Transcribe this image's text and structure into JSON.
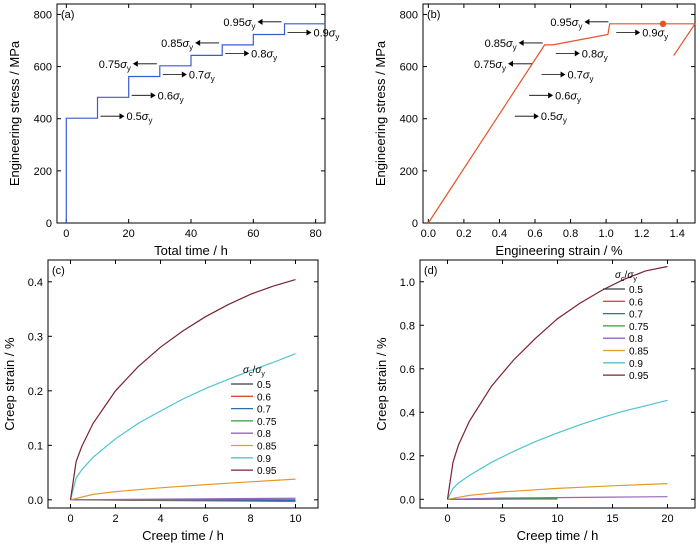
{
  "chart_data": [
    {
      "panel": "(a)",
      "type": "line",
      "xlabel": "Total time / h",
      "ylabel": "Engineering stress / MPa",
      "xlim": [
        -3,
        83
      ],
      "ylim": [
        0,
        840
      ],
      "xticks": [
        0,
        20,
        40,
        60,
        80
      ],
      "yticks": [
        0,
        200,
        400,
        600,
        800
      ],
      "line_color": "#3b5bd6",
      "series": [
        {
          "x": [
            0,
            0,
            10,
            10,
            20,
            20,
            30,
            30,
            40,
            40,
            50,
            50,
            60,
            60,
            70,
            70,
            83
          ],
          "y": [
            0,
            402,
            402,
            482,
            482,
            562,
            562,
            603,
            603,
            643,
            643,
            683,
            683,
            723,
            723,
            764,
            764
          ]
        }
      ],
      "annotations": [
        {
          "label": "0.5σy",
          "base": "0.5",
          "sub": "y",
          "x": 10,
          "y": 402,
          "dir": "right"
        },
        {
          "label": "0.6σy",
          "base": "0.6",
          "sub": "y",
          "x": 20,
          "y": 482,
          "dir": "right"
        },
        {
          "label": "0.75σy",
          "base": "0.75",
          "sub": "y",
          "x": 30,
          "y": 603,
          "dir": "left"
        },
        {
          "label": "0.7σy",
          "base": "0.7",
          "sub": "y",
          "x": 30,
          "y": 562,
          "dir": "right"
        },
        {
          "label": "0.85σy",
          "base": "0.85",
          "sub": "y",
          "x": 50,
          "y": 683,
          "dir": "left"
        },
        {
          "label": "0.8σy",
          "base": "0.8",
          "sub": "y",
          "x": 50,
          "y": 643,
          "dir": "right"
        },
        {
          "label": "0.95σy",
          "base": "0.95",
          "sub": "y",
          "x": 70,
          "y": 764,
          "dir": "left"
        },
        {
          "label": "0.9σy",
          "base": "0.9",
          "sub": "y",
          "x": 70,
          "y": 723,
          "dir": "right"
        }
      ]
    },
    {
      "panel": "(b)",
      "type": "line",
      "xlabel": "Engineering strain / %",
      "ylabel": "Engineering stress / MPa",
      "xlim": [
        -0.03,
        1.5
      ],
      "ylim": [
        0,
        840
      ],
      "xticks": [
        0.0,
        0.2,
        0.4,
        0.6,
        0.8,
        1.0,
        1.2,
        1.4
      ],
      "yticks": [
        0,
        200,
        400,
        600,
        800
      ],
      "line_color": "#e8512a",
      "series": [
        {
          "x": [
            0,
            0.654,
            0.7,
            1.01,
            1.02,
            1.5,
            1.38
          ],
          "y": [
            0,
            683,
            683,
            723,
            764,
            764,
            642
          ]
        }
      ],
      "marker": {
        "x": 1.32,
        "y": 764
      },
      "annotations": [
        {
          "label": "0.5σy",
          "base": "0.5",
          "sub": "y",
          "x": 0.47,
          "y": 402,
          "dir": "right"
        },
        {
          "label": "0.6σy",
          "base": "0.6",
          "sub": "y",
          "x": 0.55,
          "y": 482,
          "dir": "right"
        },
        {
          "label": "0.75σy",
          "base": "0.75",
          "sub": "y",
          "x": 0.6,
          "y": 603,
          "dir": "left"
        },
        {
          "label": "0.7σy",
          "base": "0.7",
          "sub": "y",
          "x": 0.62,
          "y": 562,
          "dir": "right"
        },
        {
          "label": "0.85σy",
          "base": "0.85",
          "sub": "y",
          "x": 0.66,
          "y": 683,
          "dir": "left"
        },
        {
          "label": "0.8σy",
          "base": "0.8",
          "sub": "y",
          "x": 0.7,
          "y": 643,
          "dir": "right"
        },
        {
          "label": "0.95σy",
          "base": "0.95",
          "sub": "y",
          "x": 1.03,
          "y": 764,
          "dir": "left"
        },
        {
          "label": "0.9σy",
          "base": "0.9",
          "sub": "y",
          "x": 1.04,
          "y": 723,
          "dir": "right"
        }
      ]
    },
    {
      "panel": "(c)",
      "type": "line",
      "xlabel": "Creep time / h",
      "ylabel": "Creep strain / %",
      "xlim": [
        -1,
        11
      ],
      "ylim": [
        -0.015,
        0.44
      ],
      "xticks": [
        0,
        2,
        4,
        6,
        8,
        10
      ],
      "yticks": [
        0.0,
        0.1,
        0.2,
        0.3,
        0.4
      ],
      "legend_title": "σc/σy",
      "series": [
        {
          "name": "0.5",
          "color": "#3c3c3c",
          "x": [
            0,
            10
          ],
          "y": [
            0,
            -0.002
          ]
        },
        {
          "name": "0.6",
          "color": "#e24a33",
          "x": [
            0,
            10
          ],
          "y": [
            0,
            -0.003
          ]
        },
        {
          "name": "0.7",
          "color": "#2b6db5",
          "x": [
            0,
            10
          ],
          "y": [
            0,
            -0.001
          ]
        },
        {
          "name": "0.75",
          "color": "#2ca02c",
          "x": [
            0,
            10
          ],
          "y": [
            0,
            0.001
          ]
        },
        {
          "name": "0.8",
          "color": "#9467bd",
          "x": [
            0,
            10
          ],
          "y": [
            0,
            0.003
          ]
        },
        {
          "name": "0.85",
          "color": "#e49b2a",
          "x": [
            0,
            1,
            2,
            4,
            6,
            8,
            10
          ],
          "y": [
            0,
            0.01,
            0.015,
            0.022,
            0.028,
            0.033,
            0.038
          ]
        },
        {
          "name": "0.9",
          "color": "#4fc4cf",
          "x": [
            0,
            0.25,
            0.5,
            1,
            2,
            3,
            4,
            5,
            6,
            7,
            8,
            9,
            10
          ],
          "y": [
            0,
            0.04,
            0.055,
            0.078,
            0.112,
            0.14,
            0.163,
            0.185,
            0.204,
            0.221,
            0.237,
            0.252,
            0.268
          ]
        },
        {
          "name": "0.95",
          "color": "#7b2230",
          "x": [
            0,
            0.25,
            0.5,
            1,
            2,
            3,
            4,
            5,
            6,
            7,
            8,
            9,
            10
          ],
          "y": [
            0,
            0.07,
            0.098,
            0.14,
            0.2,
            0.244,
            0.28,
            0.31,
            0.336,
            0.358,
            0.377,
            0.392,
            0.404
          ]
        }
      ]
    },
    {
      "panel": "(d)",
      "type": "line",
      "xlabel": "Creep time / h",
      "ylabel": "Creep strain / %",
      "xlim": [
        -2.5,
        22.5
      ],
      "ylim": [
        -0.04,
        1.1
      ],
      "xticks": [
        0,
        5,
        10,
        15,
        20
      ],
      "yticks": [
        0.0,
        0.2,
        0.4,
        0.6,
        0.8,
        1.0
      ],
      "legend_title": "σc/σy",
      "series": [
        {
          "name": "0.5",
          "color": "#3c3c3c",
          "x": [
            0,
            10
          ],
          "y": [
            0,
            0.002
          ]
        },
        {
          "name": "0.6",
          "color": "#e24a33",
          "x": [
            0,
            10
          ],
          "y": [
            0,
            0.003
          ]
        },
        {
          "name": "0.7",
          "color": "#2b6db5",
          "x": [
            0,
            10
          ],
          "y": [
            0,
            0.004
          ]
        },
        {
          "name": "0.75",
          "color": "#2ca02c",
          "x": [
            0,
            10
          ],
          "y": [
            0,
            0.004
          ]
        },
        {
          "name": "0.8",
          "color": "#9467bd",
          "x": [
            0,
            5,
            10,
            15,
            20
          ],
          "y": [
            0,
            0.006,
            0.008,
            0.01,
            0.012
          ]
        },
        {
          "name": "0.85",
          "color": "#e49b2a",
          "x": [
            0,
            2,
            5,
            10,
            15,
            20
          ],
          "y": [
            0,
            0.018,
            0.034,
            0.05,
            0.062,
            0.072
          ]
        },
        {
          "name": "0.9",
          "color": "#4fc4cf",
          "x": [
            0,
            0.5,
            1,
            2,
            4,
            6,
            8,
            10,
            12,
            14,
            16,
            18,
            20
          ],
          "y": [
            0,
            0.05,
            0.075,
            0.11,
            0.17,
            0.22,
            0.265,
            0.305,
            0.342,
            0.375,
            0.405,
            0.43,
            0.455
          ]
        },
        {
          "name": "0.95",
          "color": "#7b2230",
          "x": [
            0,
            0.5,
            1,
            2,
            4,
            6,
            8,
            10,
            12,
            14,
            16,
            18,
            20
          ],
          "y": [
            0,
            0.17,
            0.25,
            0.36,
            0.52,
            0.64,
            0.74,
            0.83,
            0.9,
            0.96,
            1.01,
            1.05,
            1.07
          ]
        }
      ]
    }
  ]
}
